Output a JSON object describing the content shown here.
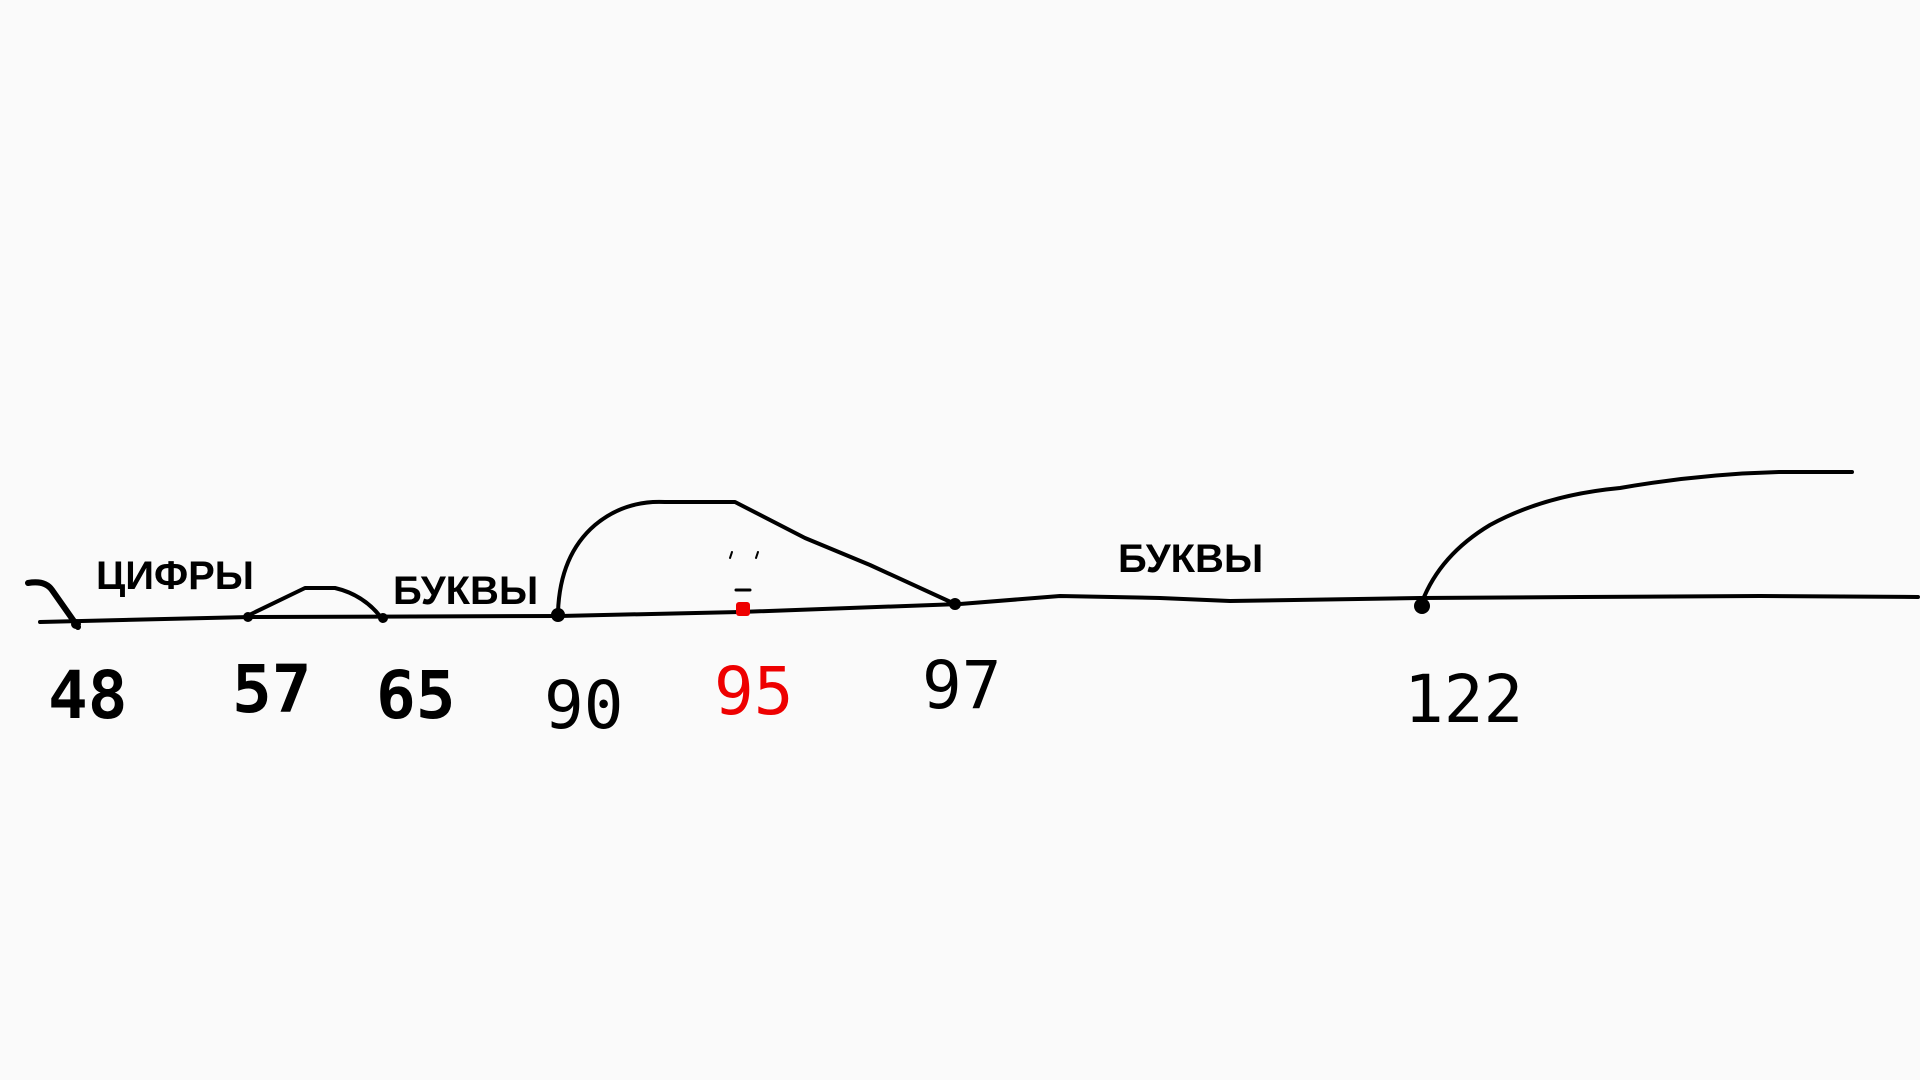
{
  "diagram": {
    "region_labels": {
      "digits": "ЦИФРЫ",
      "letters_upper": "БУКВЫ",
      "letters_lower": "БУКВЫ"
    },
    "numbers": {
      "n48": "48",
      "n57": "57",
      "n65": "65",
      "n90": "90",
      "n95": "95",
      "n97": "97",
      "n122": "122"
    },
    "highlight_color": "#ee0000"
  }
}
